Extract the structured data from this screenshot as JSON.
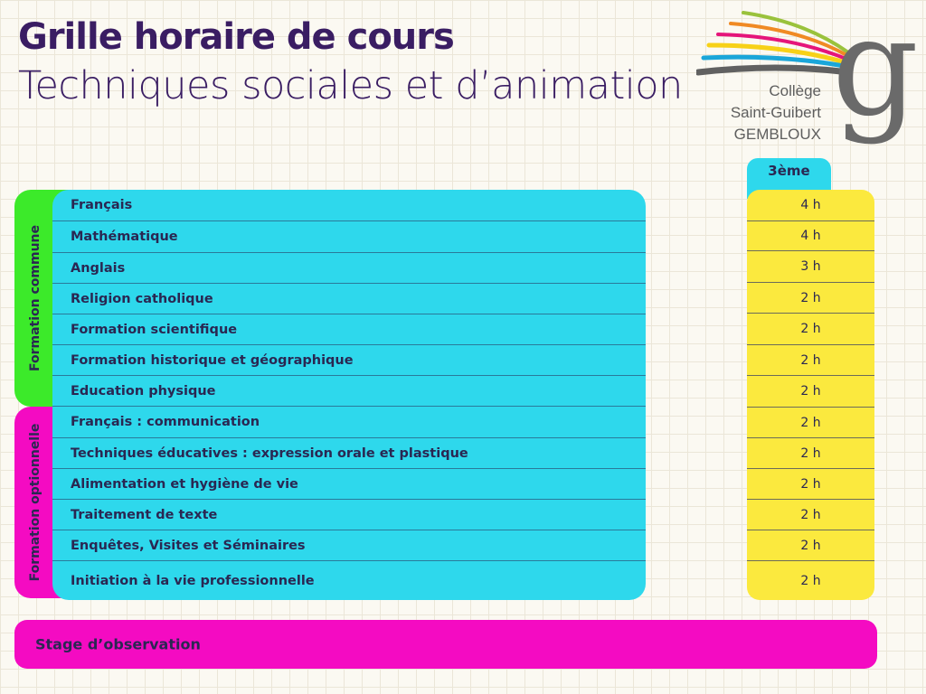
{
  "title": "Grille horaire de cours",
  "subtitle": "Techniques sociales et d’animation",
  "logo": {
    "line1": "Collège",
    "line2": "Saint-Guibert",
    "line3": "GEMBLOUX",
    "colors": [
      "#9ac23c",
      "#f08a24",
      "#e5157a",
      "#f7d117",
      "#1aa6d9",
      "#616161"
    ]
  },
  "groups": {
    "commune": "Formation commune",
    "optionnelle": "Formation optionnelle"
  },
  "column_header": "3ème",
  "subjects": [
    {
      "name": "Français",
      "hours": "4 h"
    },
    {
      "name": "Mathématique",
      "hours": "4 h"
    },
    {
      "name": "Anglais",
      "hours": "3 h"
    },
    {
      "name": "Religion catholique",
      "hours": "2 h"
    },
    {
      "name": "Formation scientifique",
      "hours": "2 h"
    },
    {
      "name": "Formation historique et géographique",
      "hours": "2 h"
    },
    {
      "name": "Education physique",
      "hours": "2 h"
    },
    {
      "name": "Français : communication",
      "hours": "2 h"
    },
    {
      "name": "Techniques éducatives : expression orale et plastique",
      "hours": "2 h"
    },
    {
      "name": "Alimentation et hygiène de vie",
      "hours": "2 h"
    },
    {
      "name": "Traitement de texte",
      "hours": "2 h"
    },
    {
      "name": "Enquêtes, Visites et Séminaires",
      "hours": "2 h"
    },
    {
      "name": "Initiation à la vie professionnelle",
      "hours": "2 h"
    }
  ],
  "stage": "Stage d’observation",
  "colors": {
    "accent_green": "#3cea2a",
    "accent_pink": "#f40bc2",
    "panel_cyan": "#2ed8ec",
    "panel_yellow": "#fbe93e",
    "text_dark": "#2a2752"
  }
}
